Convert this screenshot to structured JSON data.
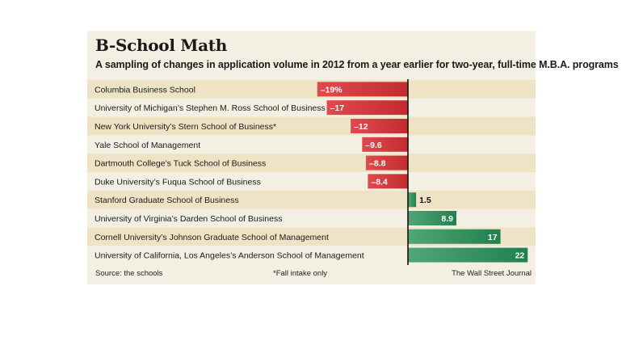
{
  "chart_data": {
    "type": "bar",
    "orientation": "horizontal",
    "title": "B-School Math",
    "subtitle": "A sampling of changes in application volume in 2012 from a year earlier for two-year, full-time M.B.A. programs",
    "categories": [
      "Columbia Business School",
      "University of Michigan’s Stephen M. Ross School of Business",
      "New York University’s Stern School of Business*",
      "Yale School of Management",
      "Dartmouth College’s Tuck School of Business",
      "Duke University’s Fuqua School of Business",
      "Stanford Graduate School of Business",
      "University of Virginia’s Darden School of Business",
      "Cornell University’s Johnson Graduate School of Management",
      "University of California, Los Angeles’s Anderson School of Management"
    ],
    "values": [
      -19,
      -17,
      -12,
      -9.6,
      -8.8,
      -8.4,
      1.5,
      8.9,
      17,
      22
    ],
    "value_labels": [
      "–19%",
      "–17",
      "–12",
      "–9.6",
      "–8.8",
      "–8.4",
      "1.5",
      "8.9",
      "17",
      "22"
    ],
    "xlim": [
      -22,
      23
    ],
    "negative_color": "#d33b3f",
    "positive_color": "#2f8f5b",
    "row_band_color": "#efe3c6",
    "panel_color": "#f3efe2"
  },
  "footer": {
    "source": "Source: the schools",
    "note": "*Fall intake only",
    "credit": "The Wall Street Journal"
  }
}
